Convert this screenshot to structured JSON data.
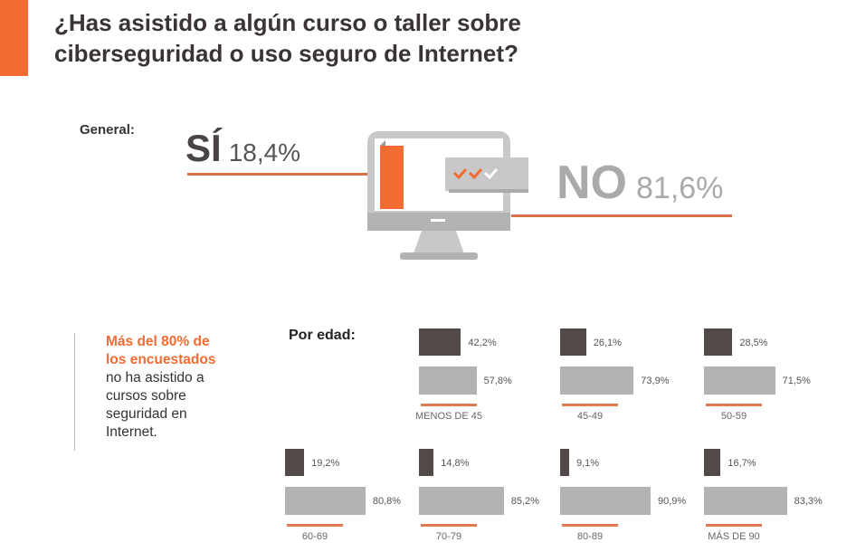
{
  "title": "¿Has asistido a algún curso o taller sobre ciberseguridad o uso seguro de Internet?",
  "colors": {
    "accent": "#f26b32",
    "si": "#514a48",
    "no": "#b3b3b3"
  },
  "general": {
    "label": "General:",
    "si_label": "SÍ",
    "si_value": "18,4%",
    "no_label": "NO",
    "no_value": "81,6%"
  },
  "note": {
    "highlight": "Más del 80% de los encuestados",
    "text": "no ha asistido a cursos sobre seguridad en Internet."
  },
  "chart_data": {
    "type": "bar",
    "title": "Por edad:",
    "categories": [
      "MENOS DE 45",
      "45-49",
      "50-59",
      "60-69",
      "70-79",
      "80-89",
      "MÁS DE 90"
    ],
    "series": [
      {
        "name": "SÍ",
        "values": [
          42.2,
          26.1,
          28.5,
          19.2,
          14.8,
          9.1,
          16.7
        ],
        "labels": [
          "42,2%",
          "26,1%",
          "28,5%",
          "19,2%",
          "14,8%",
          "9,1%",
          "16,7%"
        ]
      },
      {
        "name": "NO",
        "values": [
          57.8,
          73.9,
          71.5,
          80.8,
          85.2,
          90.9,
          83.3
        ],
        "labels": [
          "57,8%",
          "73,9%",
          "71,5%",
          "80,8%",
          "85,2%",
          "90,9%",
          "83,3%"
        ]
      }
    ]
  }
}
